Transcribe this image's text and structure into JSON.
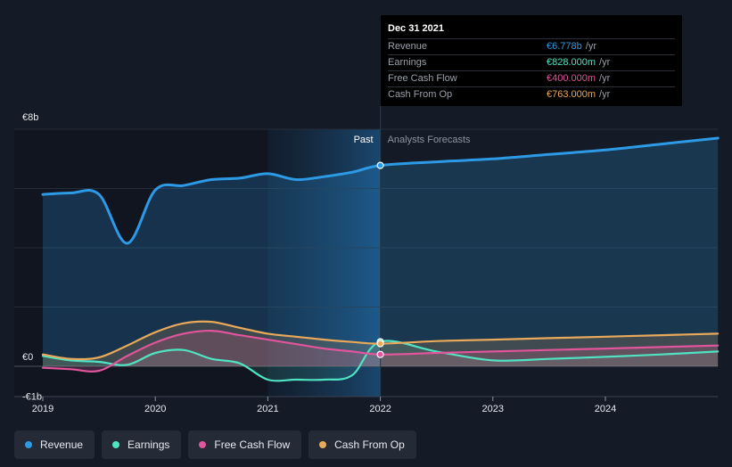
{
  "chart_data": {
    "type": "line",
    "y_axis": {
      "top_label": "€8b",
      "zero_label": "€0",
      "bottom_label": "-€1b",
      "ylim": [
        -1,
        8
      ],
      "unit": "€b"
    },
    "x_axis": {
      "ticks": [
        "2019",
        "2020",
        "2021",
        "2022",
        "2023",
        "2024"
      ],
      "xlim": [
        2019.0,
        2025.0
      ]
    },
    "regions": {
      "past_label": "Past",
      "forecast_label": "Analysts Forecasts",
      "divider_x": 2022.0,
      "highlight_start_x": 2021.0
    },
    "series": [
      {
        "key": "revenue",
        "name": "Revenue",
        "color": "#2d9ae6",
        "x": [
          2019.0,
          2019.25,
          2019.5,
          2019.75,
          2020.0,
          2020.25,
          2020.5,
          2020.75,
          2021.0,
          2021.25,
          2021.5,
          2021.75,
          2022.0,
          2022.5,
          2023.0,
          2023.5,
          2024.0,
          2024.5,
          2025.0
        ],
        "values": [
          5.8,
          5.85,
          5.8,
          4.15,
          5.95,
          6.1,
          6.3,
          6.35,
          6.5,
          6.3,
          6.4,
          6.55,
          6.778,
          6.9,
          7.0,
          7.15,
          7.3,
          7.5,
          7.7
        ]
      },
      {
        "key": "earnings",
        "name": "Earnings",
        "color": "#50e3c2",
        "x": [
          2019.0,
          2019.25,
          2019.5,
          2019.75,
          2020.0,
          2020.25,
          2020.5,
          2020.75,
          2021.0,
          2021.25,
          2021.5,
          2021.75,
          2022.0,
          2022.5,
          2023.0,
          2023.5,
          2024.0,
          2024.5,
          2025.0
        ],
        "values": [
          0.35,
          0.2,
          0.15,
          0.05,
          0.45,
          0.55,
          0.25,
          0.1,
          -0.45,
          -0.45,
          -0.45,
          -0.3,
          0.828,
          0.5,
          0.2,
          0.25,
          0.32,
          0.4,
          0.5
        ]
      },
      {
        "key": "fcf",
        "name": "Free Cash Flow",
        "color": "#e0559b",
        "x": [
          2019.0,
          2019.25,
          2019.5,
          2019.75,
          2020.0,
          2020.25,
          2020.5,
          2020.75,
          2021.0,
          2021.25,
          2021.5,
          2021.75,
          2022.0,
          2022.5,
          2023.0,
          2023.5,
          2024.0,
          2024.5,
          2025.0
        ],
        "values": [
          -0.05,
          -0.1,
          -0.15,
          0.35,
          0.8,
          1.1,
          1.2,
          1.05,
          0.9,
          0.75,
          0.6,
          0.5,
          0.4,
          0.45,
          0.5,
          0.55,
          0.6,
          0.65,
          0.7
        ]
      },
      {
        "key": "cfo",
        "name": "Cash From Op",
        "color": "#e8a95b",
        "x": [
          2019.0,
          2019.25,
          2019.5,
          2019.75,
          2020.0,
          2020.25,
          2020.5,
          2020.75,
          2021.0,
          2021.25,
          2021.5,
          2021.75,
          2022.0,
          2022.5,
          2023.0,
          2023.5,
          2024.0,
          2024.5,
          2025.0
        ],
        "values": [
          0.4,
          0.25,
          0.3,
          0.7,
          1.15,
          1.45,
          1.5,
          1.3,
          1.1,
          1.0,
          0.9,
          0.82,
          0.763,
          0.85,
          0.9,
          0.95,
          1.0,
          1.05,
          1.1
        ]
      }
    ]
  },
  "tooltip": {
    "date": "Dec 31 2021",
    "rows": [
      {
        "name": "Revenue",
        "value": "€6.778b",
        "unit": "/yr",
        "color": "#2d9ae6"
      },
      {
        "name": "Earnings",
        "value": "€828.000m",
        "unit": "/yr",
        "color": "#50e3c2"
      },
      {
        "name": "Free Cash Flow",
        "value": "€400.000m",
        "unit": "/yr",
        "color": "#e0559b"
      },
      {
        "name": "Cash From Op",
        "value": "€763.000m",
        "unit": "/yr",
        "color": "#e8a95b"
      }
    ]
  },
  "legend": [
    {
      "label": "Revenue",
      "color": "#2d9ae6"
    },
    {
      "label": "Earnings",
      "color": "#50e3c2"
    },
    {
      "label": "Free Cash Flow",
      "color": "#e0559b"
    },
    {
      "label": "Cash From Op",
      "color": "#e8a95b"
    }
  ]
}
